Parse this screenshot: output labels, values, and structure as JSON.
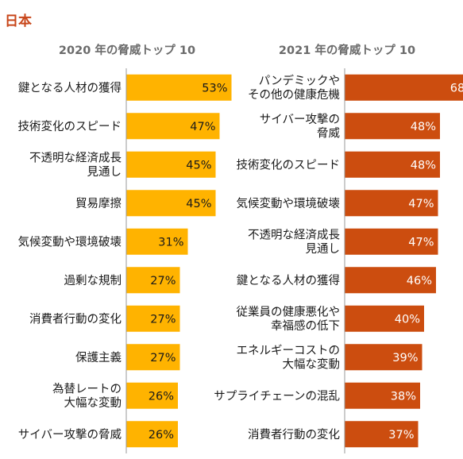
{
  "region_title": "日本",
  "colors": {
    "region_title": "#c8461a",
    "left_bar": "#ffb300",
    "right_bar": "#cc4d0f",
    "left_value_text": "#1a1a1a",
    "right_value_text": "#ffffff",
    "axis": "#9a9a9a"
  },
  "chart_data": [
    {
      "type": "bar",
      "orientation": "horizontal",
      "title": "2020 年の脅威トップ 10",
      "unit": "%",
      "categories": [
        [
          "鍵となる人材の獲得"
        ],
        [
          "技術変化のスピード"
        ],
        [
          "不透明な経済成長",
          "見通し"
        ],
        [
          "貿易摩擦"
        ],
        [
          "気候変動や環境破壊"
        ],
        [
          "過剰な規制"
        ],
        [
          "消費者行動の変化"
        ],
        [
          "保護主義"
        ],
        [
          "為替レートの",
          "大幅な変動"
        ],
        [
          "サイバー攻撃の脅威"
        ]
      ],
      "values": [
        53,
        47,
        45,
        45,
        31,
        27,
        27,
        27,
        26,
        26
      ]
    },
    {
      "type": "bar",
      "orientation": "horizontal",
      "title": "2021 年の脅威トップ 10",
      "unit": "%",
      "categories": [
        [
          "パンデミックや",
          "その他の健康危機"
        ],
        [
          "サイバー攻撃の",
          "脅威"
        ],
        [
          "技術変化のスピード"
        ],
        [
          "気候変動や環境破壊"
        ],
        [
          "不透明な経済成長",
          "見通し"
        ],
        [
          "鍵となる人材の獲得"
        ],
        [
          "従業員の健康悪化や",
          "幸福感の低下"
        ],
        [
          "エネルギーコストの",
          "大幅な変動"
        ],
        [
          "サプライチェーンの混乱"
        ],
        [
          "消費者行動の変化"
        ]
      ],
      "values": [
        68,
        48,
        48,
        47,
        47,
        46,
        40,
        39,
        38,
        37
      ]
    }
  ]
}
